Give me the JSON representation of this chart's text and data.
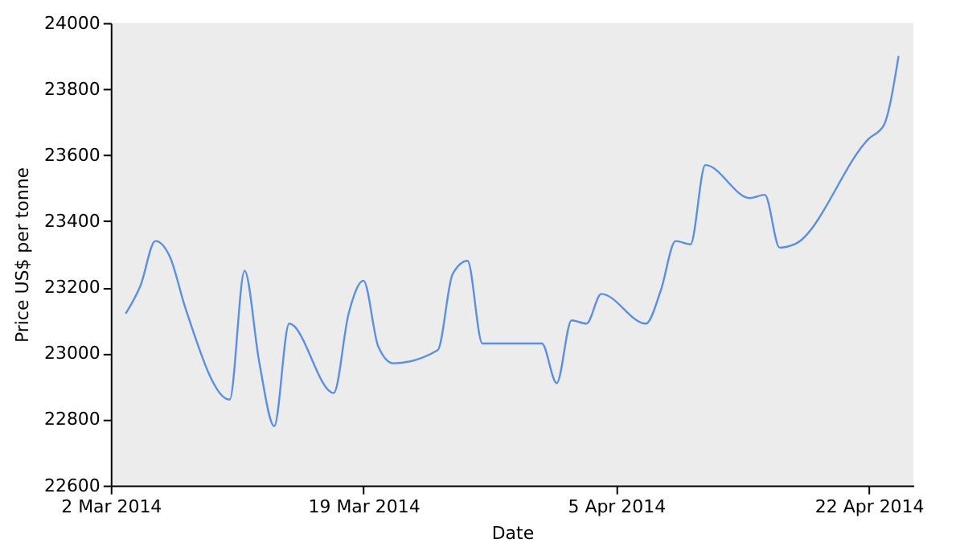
{
  "chart_data": {
    "type": "line",
    "xlabel": "Date",
    "ylabel": "Price US$ per tonne",
    "x": [
      "2014-03-03",
      "2014-03-04",
      "2014-03-05",
      "2014-03-06",
      "2014-03-07",
      "2014-03-10",
      "2014-03-11",
      "2014-03-12",
      "2014-03-13",
      "2014-03-14",
      "2014-03-17",
      "2014-03-18",
      "2014-03-19",
      "2014-03-20",
      "2014-03-21",
      "2014-03-24",
      "2014-03-25",
      "2014-03-26",
      "2014-03-27",
      "2014-03-28",
      "2014-03-31",
      "2014-04-01",
      "2014-04-02",
      "2014-04-03",
      "2014-04-04",
      "2014-04-07",
      "2014-04-08",
      "2014-04-09",
      "2014-04-10",
      "2014-04-11",
      "2014-04-14",
      "2014-04-15",
      "2014-04-16",
      "2014-04-17",
      "2014-04-22",
      "2014-04-23",
      "2014-04-24"
    ],
    "series": [
      {
        "color": "#5b8fe0",
        "values": [
          23120,
          23205,
          23340,
          23290,
          23140,
          22860,
          23250,
          22970,
          22780,
          23090,
          22880,
          23120,
          23220,
          23020,
          22970,
          23010,
          23240,
          23280,
          23030,
          23030,
          23030,
          22910,
          23100,
          23090,
          23180,
          23090,
          23190,
          23340,
          23330,
          23570,
          23470,
          23480,
          23320,
          23330,
          23650,
          23690,
          23900
        ]
      }
    ],
    "xlim": [
      "2014-03-02",
      "2014-04-25"
    ],
    "xticks": [
      {
        "value": "2014-03-02",
        "label": "2 Mar 2014"
      },
      {
        "value": "2014-03-19",
        "label": "19 Mar 2014"
      },
      {
        "value": "2014-04-05",
        "label": "5 Apr 2014"
      },
      {
        "value": "2014-04-22",
        "label": "22 Apr 2014"
      }
    ],
    "ylim": [
      22600,
      24000
    ],
    "yticks": [
      22600,
      22800,
      23000,
      23200,
      23400,
      23600,
      23800,
      24000
    ],
    "grid": false,
    "legend": false,
    "marker": "none",
    "line_style": "solid"
  }
}
